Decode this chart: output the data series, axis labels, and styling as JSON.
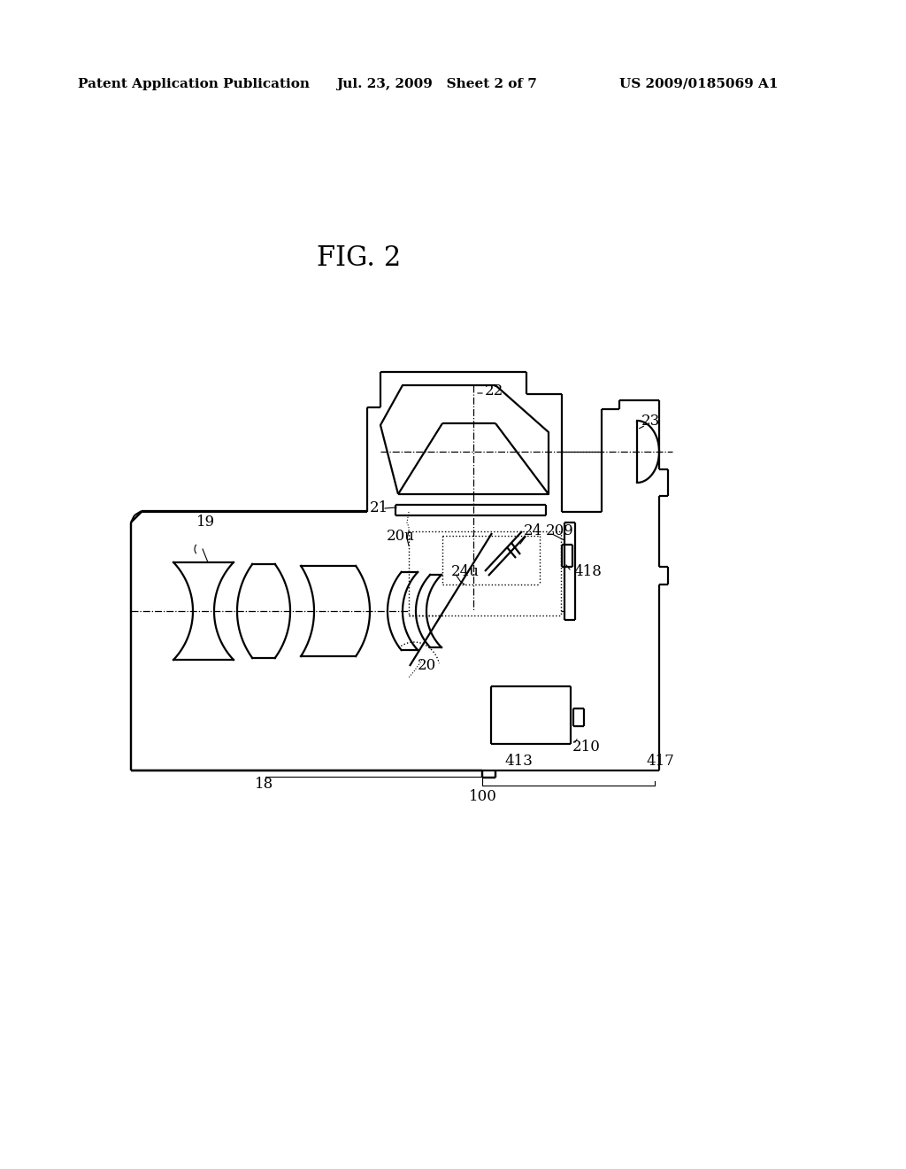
{
  "bg_color": "#ffffff",
  "line_color": "#000000",
  "header_left": "Patent Application Publication",
  "header_mid": "Jul. 23, 2009   Sheet 2 of 7",
  "header_right": "US 2009/0185069 A1",
  "fig_title": "FIG. 2"
}
